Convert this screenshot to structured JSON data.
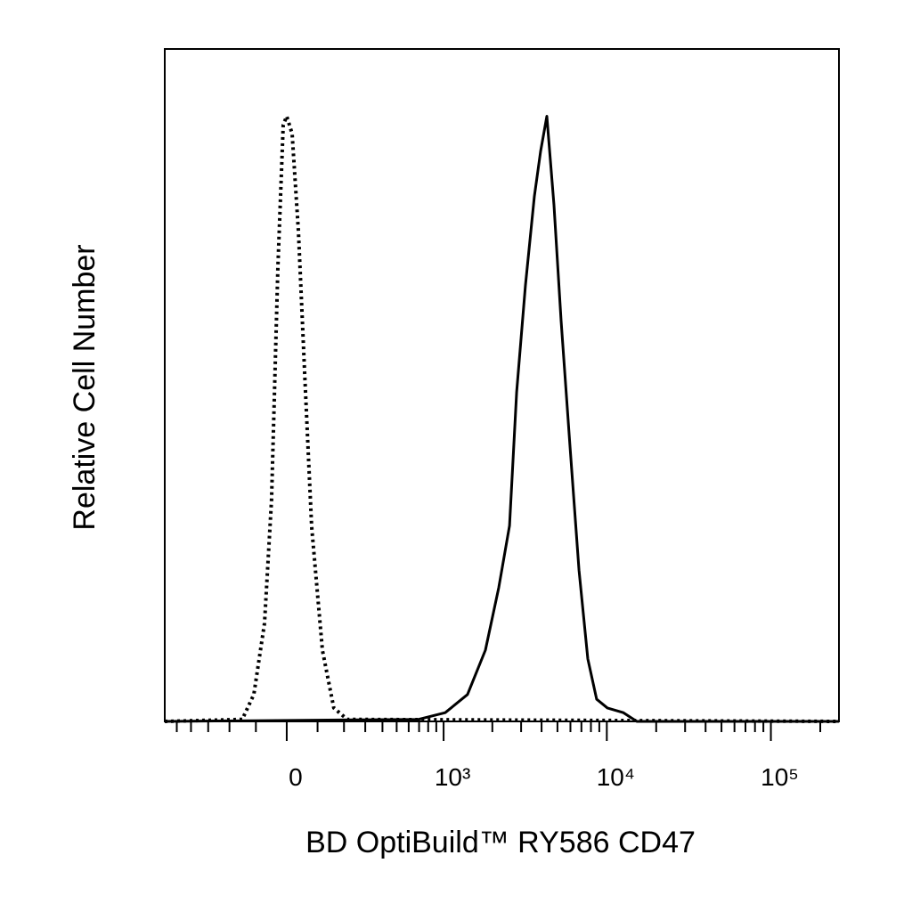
{
  "chart_data": {
    "type": "line",
    "xlabel": "BD OptiBuild™ RY586 CD47",
    "ylabel": "Relative Cell Number",
    "xscale": "biexponential",
    "xlim": [
      -600,
      260000
    ],
    "ylim": [
      0,
      100
    ],
    "xticks": [
      0,
      {
        "value": 1000,
        "label": "10³"
      },
      {
        "value": 10000,
        "label": "10⁴"
      },
      {
        "value": 100000,
        "label": "10⁵"
      }
    ],
    "xminorticks": [
      -500,
      -400,
      -300,
      -200,
      -100,
      100,
      200,
      300,
      400,
      500,
      600,
      700,
      800,
      900,
      2000,
      3000,
      4000,
      5000,
      6000,
      7000,
      8000,
      9000,
      20000,
      30000,
      40000,
      50000,
      60000,
      70000,
      80000,
      90000,
      200000
    ],
    "series": [
      {
        "color": "#000000",
        "dash": "dotted",
        "x": [
          -600,
          -149,
          -107,
          -71,
          -48,
          -28,
          -11,
          0,
          17,
          37,
          57,
          80,
          117,
          159,
          214,
          260000
        ],
        "values": [
          0,
          0.3,
          4,
          14.6,
          33,
          67.5,
          88.7,
          90,
          87.4,
          72.8,
          51.7,
          29,
          10.6,
          2,
          0.3,
          0
        ]
      },
      {
        "color": "#000000",
        "dash": "solid",
        "x": [
          -600,
          695,
          1024,
          1407,
          1812,
          2189,
          2547,
          2816,
          3190,
          3615,
          3947,
          4308,
          4760,
          5264,
          5958,
          6765,
          7661,
          8669,
          10080,
          12634,
          15232,
          19555,
          260000
        ],
        "values": [
          0,
          0.3,
          1.3,
          4,
          10.6,
          19.9,
          29.1,
          49,
          64.9,
          78.1,
          84.8,
          90,
          76.8,
          59.6,
          41.1,
          22.5,
          9.3,
          3.3,
          2,
          1.3,
          0,
          0,
          0
        ]
      }
    ]
  }
}
